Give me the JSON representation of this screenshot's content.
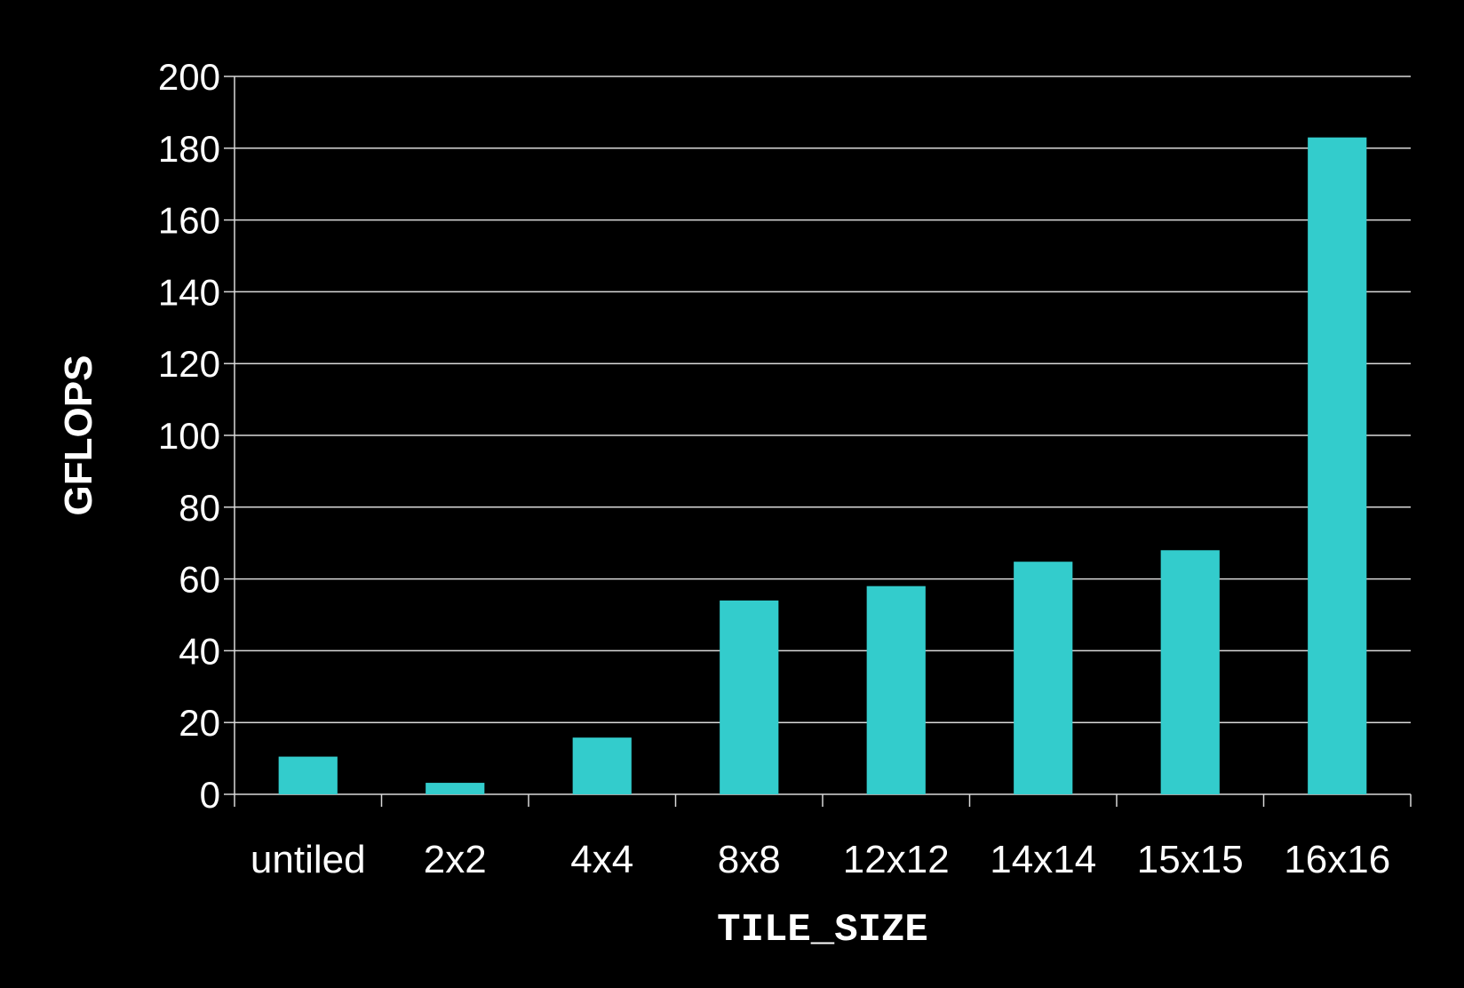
{
  "chart_data": {
    "type": "bar",
    "title": "",
    "xlabel": "TILE_SIZE",
    "ylabel": "GFLOPS",
    "categories": [
      "untiled",
      "2x2",
      "4x4",
      "8x8",
      "12x12",
      "14x14",
      "15x15",
      "16x16"
    ],
    "values": [
      10.5,
      3.2,
      15.8,
      54,
      58,
      64.8,
      68,
      183
    ],
    "ylim": [
      0,
      200
    ],
    "yticks": [
      0,
      20,
      40,
      60,
      80,
      100,
      120,
      140,
      160,
      180,
      200
    ],
    "grid": true,
    "legend": "none",
    "colors": {
      "background": "#000000",
      "bar": "#33CCCC",
      "grid": "#d9d9d9",
      "text": "#ffffff"
    }
  }
}
